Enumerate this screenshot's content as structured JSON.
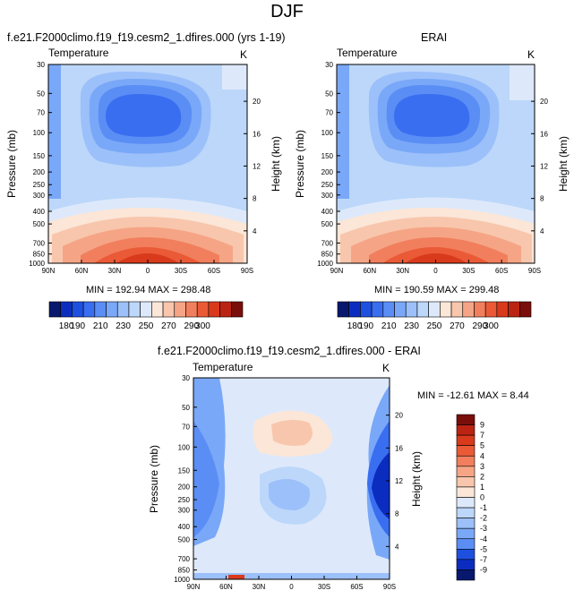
{
  "figure": {
    "title": "DJF"
  },
  "palette": {
    "levels_abs": [
      "180",
      "190",
      "210",
      "230",
      "250",
      "270",
      "290",
      "300"
    ],
    "colors_abs": [
      "#08186e",
      "#0b2dbf",
      "#1e50e0",
      "#3a6ef0",
      "#5a8ef5",
      "#7aa8f8",
      "#9cc0f9",
      "#bcd7fa",
      "#dde9fb",
      "#fbe6d8",
      "#f8c6ac",
      "#f5a586",
      "#f17f5d",
      "#ea5a36",
      "#d93a1c",
      "#bb2412",
      "#7a0e0a"
    ],
    "levels_diff": [
      "9",
      "7",
      "5",
      "4",
      "3",
      "2",
      "1",
      "0",
      "-1",
      "-2",
      "-3",
      "-4",
      "-5",
      "-7",
      "-9"
    ],
    "colors_diff": [
      "#7a0e0a",
      "#bb2412",
      "#d93a1c",
      "#ea5a36",
      "#f17f5d",
      "#f5a586",
      "#f8c6ac",
      "#fbe6d8",
      "#dde9fb",
      "#bcd7fa",
      "#9cc0f9",
      "#7aa8f8",
      "#5a8ef5",
      "#1e50e0",
      "#0b2dbf",
      "#08186e"
    ]
  },
  "chart_data": [
    {
      "type": "heatmap",
      "title": "f.e21.F2000climo.f19_f19.cesm2_1.dfires.000 (yrs 1-19)",
      "left_label": "Temperature",
      "right_label": "K",
      "xlabel": "",
      "ylabel": "Pressure (mb)",
      "ylabel_right": "Height (km)",
      "x_ticks": [
        "90N",
        "60N",
        "30N",
        "0",
        "30S",
        "60S",
        "90S"
      ],
      "y_ticks": [
        "30",
        "50",
        "70",
        "100",
        "150",
        "200",
        "250",
        "300",
        "400",
        "500",
        "700",
        "850",
        "1000"
      ],
      "y_ticks_right": [
        "20",
        "16",
        "12",
        "8",
        "4"
      ],
      "stats": "MIN = 192.94   MAX = 298.48",
      "min": 192.94,
      "max": 298.48
    },
    {
      "type": "heatmap",
      "title": "ERAI",
      "left_label": "Temperature",
      "right_label": "K",
      "xlabel": "",
      "ylabel": "Pressure (mb)",
      "ylabel_right": "Height (km)",
      "x_ticks": [
        "90N",
        "60N",
        "30N",
        "0",
        "30S",
        "60S",
        "90S"
      ],
      "y_ticks": [
        "30",
        "50",
        "70",
        "100",
        "150",
        "200",
        "250",
        "300",
        "400",
        "500",
        "700",
        "850",
        "1000"
      ],
      "y_ticks_right": [
        "20",
        "16",
        "12",
        "8",
        "4"
      ],
      "stats": "MIN = 190.59   MAX = 299.48",
      "min": 190.59,
      "max": 299.48
    },
    {
      "type": "heatmap",
      "title": "f.e21.F2000climo.f19_f19.cesm2_1.dfires.000 - ERAI",
      "left_label": "Temperature",
      "right_label": "K",
      "xlabel": "",
      "ylabel": "Pressure (mb)",
      "ylabel_right": "Height (km)",
      "x_ticks": [
        "90N",
        "60N",
        "30N",
        "0",
        "30S",
        "60S",
        "90S"
      ],
      "y_ticks": [
        "30",
        "50",
        "70",
        "100",
        "150",
        "200",
        "250",
        "300",
        "400",
        "500",
        "700",
        "850",
        "1000"
      ],
      "y_ticks_right": [
        "20",
        "16",
        "12",
        "8",
        "4"
      ],
      "stats": "MIN = -12.61   MAX =   8.44",
      "min": -12.61,
      "max": 8.44
    }
  ]
}
